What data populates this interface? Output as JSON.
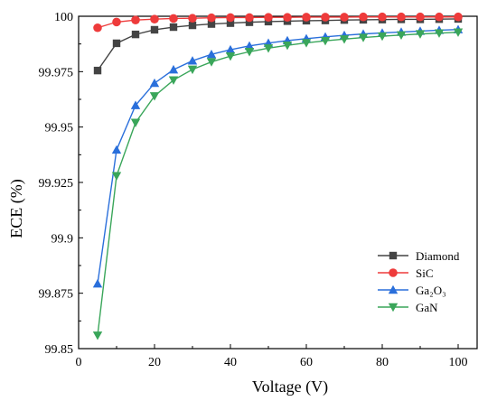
{
  "chart_data": {
    "type": "line",
    "title": "",
    "xlabel": "Voltage (V)",
    "ylabel": "ECE (%)",
    "xlim": [
      0,
      105
    ],
    "ylim": [
      99.85,
      100
    ],
    "x_ticks": [
      0,
      20,
      40,
      60,
      80,
      100
    ],
    "x_tick_labels": [
      "0",
      "20",
      "40",
      "60",
      "80",
      "100"
    ],
    "y_ticks": [
      99.85,
      99.875,
      99.9,
      99.925,
      99.95,
      99.975,
      100
    ],
    "y_tick_labels": [
      "99.85",
      "99.875",
      "99.9",
      "99.925",
      "99.95",
      "99.975",
      "100"
    ],
    "grid": false,
    "legend_position": "bottom-right",
    "x": [
      5,
      10,
      15,
      20,
      25,
      30,
      35,
      40,
      45,
      50,
      55,
      60,
      65,
      70,
      75,
      80,
      85,
      90,
      95,
      100
    ],
    "series": [
      {
        "name": "Diamond",
        "marker": "square",
        "color": "#444444",
        "values": [
          99.9755,
          99.9878,
          99.9918,
          99.9939,
          99.9951,
          99.9959,
          99.9965,
          99.9969,
          99.9973,
          99.9976,
          99.9978,
          99.998,
          99.9981,
          99.9983,
          99.9984,
          99.9985,
          99.9986,
          99.9986,
          99.9987,
          99.9988
        ]
      },
      {
        "name": "SiC",
        "marker": "circle",
        "color": "#ee3b3b",
        "values": [
          99.9948,
          99.9974,
          99.9983,
          99.9987,
          99.999,
          99.9991,
          99.9993,
          99.9994,
          99.9994,
          99.9995,
          99.9995,
          99.9996,
          99.9996,
          99.9996,
          99.9997,
          99.9997,
          99.9997,
          99.9997,
          99.9997,
          99.9997
        ]
      },
      {
        "name": "Ga₂O₃",
        "marker": "triangle-up",
        "color": "#2a6fdb",
        "values": [
          99.8793,
          99.9397,
          99.9598,
          99.9698,
          99.9759,
          99.9799,
          99.9828,
          99.9849,
          99.9866,
          99.9879,
          99.989,
          99.9899,
          99.9907,
          99.9914,
          99.992,
          99.9925,
          99.9929,
          99.9933,
          99.9937,
          99.994
        ]
      },
      {
        "name": "GaN",
        "marker": "triangle-down",
        "color": "#3aa65a",
        "values": [
          99.856,
          99.928,
          99.952,
          99.964,
          99.9712,
          99.976,
          99.9794,
          99.982,
          99.984,
          99.9856,
          99.9869,
          99.988,
          99.9889,
          99.9897,
          99.9904,
          99.991,
          99.9915,
          99.992,
          99.9924,
          99.9928
        ]
      }
    ]
  }
}
